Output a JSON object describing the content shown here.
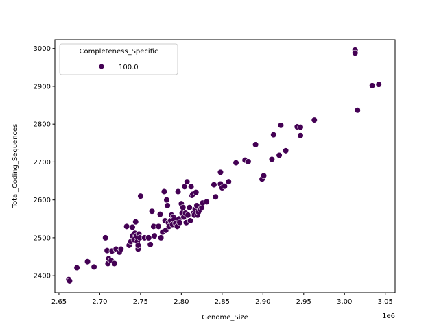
{
  "chart_data": {
    "type": "scatter",
    "title": "",
    "xlabel": "Genome_Size",
    "ylabel": "Total_Coding_Sequences",
    "x_offset_label": "1e6",
    "xlim": [
      2.645,
      3.062
    ],
    "ylim": [
      2355,
      3023
    ],
    "xticks": [
      2.65,
      2.7,
      2.75,
      2.8,
      2.85,
      2.9,
      2.95,
      3.0,
      3.05
    ],
    "xtick_labels": [
      "2.65",
      "2.70",
      "2.75",
      "2.80",
      "2.85",
      "2.90",
      "2.95",
      "3.00",
      "3.05"
    ],
    "yticks": [
      2400,
      2500,
      2600,
      2700,
      2800,
      2900,
      3000
    ],
    "ytick_labels": [
      "2400",
      "2500",
      "2600",
      "2700",
      "2800",
      "2900",
      "3000"
    ],
    "grid": false,
    "legend": {
      "title": "Completeness_Specific",
      "position": "upper left",
      "entries": [
        {
          "label": "100.0",
          "color": "#440154"
        }
      ]
    },
    "series": [
      {
        "name": "100.0",
        "color": "#440154",
        "points": [
          [
            2.662,
            2390
          ],
          [
            2.663,
            2386
          ],
          [
            2.672,
            2421
          ],
          [
            2.685,
            2437
          ],
          [
            2.693,
            2423
          ],
          [
            2.707,
            2500
          ],
          [
            2.709,
            2466
          ],
          [
            2.71,
            2432
          ],
          [
            2.711,
            2445
          ],
          [
            2.714,
            2440
          ],
          [
            2.715,
            2465
          ],
          [
            2.718,
            2432
          ],
          [
            2.72,
            2470
          ],
          [
            2.724,
            2462
          ],
          [
            2.726,
            2470
          ],
          [
            2.733,
            2530
          ],
          [
            2.736,
            2480
          ],
          [
            2.738,
            2490
          ],
          [
            2.74,
            2528
          ],
          [
            2.74,
            2505
          ],
          [
            2.742,
            2495
          ],
          [
            2.743,
            2512
          ],
          [
            2.744,
            2542
          ],
          [
            2.745,
            2505
          ],
          [
            2.746,
            2490
          ],
          [
            2.747,
            2470
          ],
          [
            2.747,
            2480
          ],
          [
            2.748,
            2510
          ],
          [
            2.749,
            2500
          ],
          [
            2.75,
            2610
          ],
          [
            2.755,
            2500
          ],
          [
            2.76,
            2500
          ],
          [
            2.762,
            2482
          ],
          [
            2.764,
            2570
          ],
          [
            2.766,
            2530
          ],
          [
            2.767,
            2505
          ],
          [
            2.772,
            2530
          ],
          [
            2.774,
            2562
          ],
          [
            2.775,
            2500
          ],
          [
            2.777,
            2515
          ],
          [
            2.779,
            2622
          ],
          [
            2.78,
            2545
          ],
          [
            2.781,
            2520
          ],
          [
            2.782,
            2600
          ],
          [
            2.783,
            2585
          ],
          [
            2.784,
            2540
          ],
          [
            2.785,
            2530
          ],
          [
            2.787,
            2545
          ],
          [
            2.788,
            2560
          ],
          [
            2.789,
            2535
          ],
          [
            2.79,
            2555
          ],
          [
            2.791,
            2548
          ],
          [
            2.793,
            2538
          ],
          [
            2.795,
            2530
          ],
          [
            2.796,
            2622
          ],
          [
            2.797,
            2550
          ],
          [
            2.798,
            2540
          ],
          [
            2.8,
            2590
          ],
          [
            2.801,
            2565
          ],
          [
            2.802,
            2580
          ],
          [
            2.803,
            2555
          ],
          [
            2.804,
            2635
          ],
          [
            2.805,
            2565
          ],
          [
            2.806,
            2540
          ],
          [
            2.807,
            2648
          ],
          [
            2.808,
            2560
          ],
          [
            2.81,
            2580
          ],
          [
            2.811,
            2545
          ],
          [
            2.812,
            2635
          ],
          [
            2.813,
            2612
          ],
          [
            2.814,
            2615
          ],
          [
            2.815,
            2565
          ],
          [
            2.816,
            2560
          ],
          [
            2.817,
            2575
          ],
          [
            2.818,
            2620
          ],
          [
            2.819,
            2585
          ],
          [
            2.82,
            2560
          ],
          [
            2.821,
            2568
          ],
          [
            2.823,
            2575
          ],
          [
            2.825,
            2580
          ],
          [
            2.826,
            2592
          ],
          [
            2.831,
            2595
          ],
          [
            2.84,
            2640
          ],
          [
            2.842,
            2608
          ],
          [
            2.848,
            2673
          ],
          [
            2.848,
            2642
          ],
          [
            2.85,
            2632
          ],
          [
            2.853,
            2636
          ],
          [
            2.858,
            2648
          ],
          [
            2.867,
            2698
          ],
          [
            2.878,
            2705
          ],
          [
            2.882,
            2701
          ],
          [
            2.891,
            2746
          ],
          [
            2.899,
            2655
          ],
          [
            2.901,
            2664
          ],
          [
            2.911,
            2707
          ],
          [
            2.913,
            2772
          ],
          [
            2.92,
            2718
          ],
          [
            2.922,
            2797
          ],
          [
            2.928,
            2730
          ],
          [
            2.942,
            2793
          ],
          [
            2.946,
            2770
          ],
          [
            2.946,
            2792
          ],
          [
            2.963,
            2811
          ],
          [
            3.013,
            2996
          ],
          [
            3.013,
            2988
          ],
          [
            3.016,
            2837
          ],
          [
            3.034,
            2902
          ],
          [
            3.042,
            2905
          ]
        ]
      }
    ]
  }
}
